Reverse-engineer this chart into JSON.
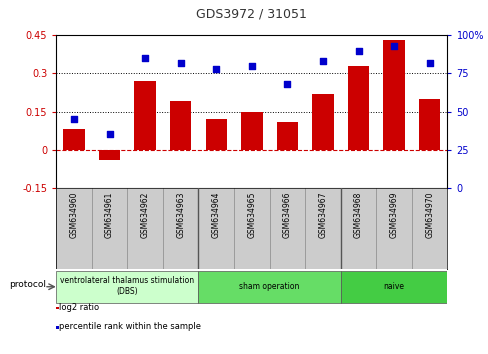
{
  "title": "GDS3972 / 31051",
  "samples": [
    "GSM634960",
    "GSM634961",
    "GSM634962",
    "GSM634963",
    "GSM634964",
    "GSM634965",
    "GSM634966",
    "GSM634967",
    "GSM634968",
    "GSM634969",
    "GSM634970"
  ],
  "log2_ratio": [
    0.08,
    -0.04,
    0.27,
    0.19,
    0.12,
    0.15,
    0.11,
    0.22,
    0.33,
    0.43,
    0.2
  ],
  "percentile_rank": [
    45,
    35,
    85,
    82,
    78,
    80,
    68,
    83,
    90,
    93,
    82
  ],
  "bar_color": "#cc0000",
  "dot_color": "#0000cc",
  "ylim_left": [
    -0.15,
    0.45
  ],
  "ylim_right": [
    0,
    100
  ],
  "yticks_left": [
    -0.15,
    0.0,
    0.15,
    0.3,
    0.45
  ],
  "yticks_right": [
    0,
    25,
    50,
    75,
    100
  ],
  "ytick_labels_left": [
    "-0.15",
    "0",
    "0.15",
    "0.3",
    "0.45"
  ],
  "ytick_labels_right": [
    "0",
    "25",
    "50",
    "75",
    "100%"
  ],
  "hlines": [
    0.15,
    0.3
  ],
  "zero_line_color": "#cc0000",
  "dotted_line_color": "#000000",
  "protocol_groups": [
    {
      "label": "ventrolateral thalamus stimulation\n(DBS)",
      "start": 0,
      "end": 3,
      "color": "#ccffcc"
    },
    {
      "label": "sham operation",
      "start": 4,
      "end": 7,
      "color": "#66dd66"
    },
    {
      "label": "naive",
      "start": 8,
      "end": 10,
      "color": "#44cc44"
    }
  ],
  "protocol_label": "protocol",
  "legend_items": [
    {
      "label": "log2 ratio",
      "color": "#cc0000"
    },
    {
      "label": "percentile rank within the sample",
      "color": "#0000cc"
    }
  ],
  "background_color": "#ffffff",
  "label_area_color": "#cccccc",
  "group_boundaries": [
    3.5,
    7.5
  ]
}
